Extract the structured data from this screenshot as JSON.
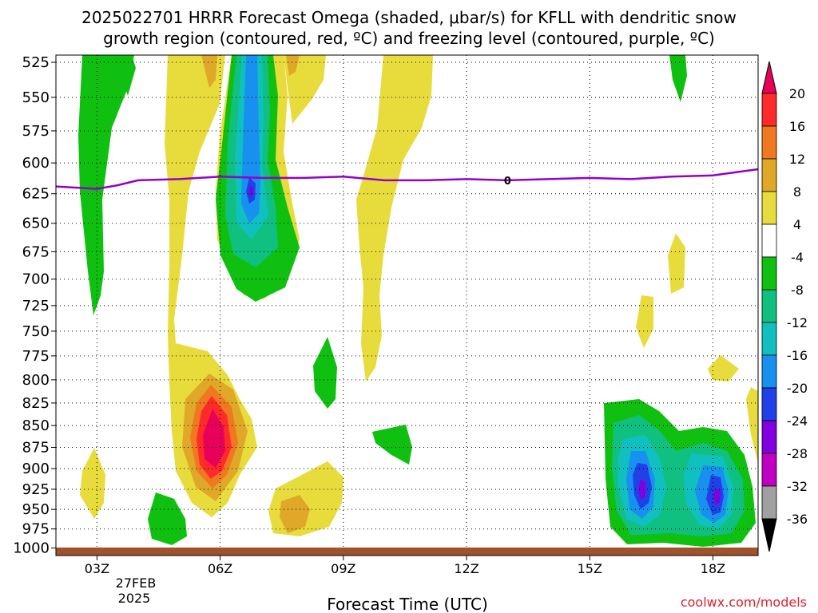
{
  "chart_data": {
    "type": "heatmap",
    "title_line1": "2025022701 HRRR Forecast Omega (shaded, μbar/s) for KFLL with dendritic snow",
    "title_line2": "growth region (contoured, red, ºC) and freezing level (contoured, purple, ºC)",
    "xlabel": "Forecast Time (UTC)",
    "credit": "coolwx.com/models",
    "date_line1": "27FEB",
    "date_line2": "2025",
    "x_ticks": [
      {
        "t": 3,
        "label": "03Z"
      },
      {
        "t": 6,
        "label": "06Z"
      },
      {
        "t": 9,
        "label": "09Z"
      },
      {
        "t": 12,
        "label": "12Z"
      },
      {
        "t": 15,
        "label": "15Z"
      },
      {
        "t": 18,
        "label": "18Z"
      }
    ],
    "xlim": [
      2,
      19.1
    ],
    "y_levels": [
      525,
      550,
      575,
      600,
      625,
      650,
      675,
      700,
      725,
      750,
      775,
      800,
      825,
      850,
      875,
      900,
      925,
      950,
      975,
      1000
    ],
    "ylim": [
      520,
      1010
    ],
    "y_scale": "log-pressure",
    "colorbar": {
      "labels": [
        "20",
        "16",
        "12",
        "8",
        "4",
        "-4",
        "-8",
        "-12",
        "-16",
        "-20",
        "-24",
        "-28",
        "-32",
        "-36"
      ],
      "colors": [
        "#e8005a",
        "#ff2a2a",
        "#f07820",
        "#e0a828",
        "#e8dc3c",
        "#ffffff",
        "#10c010",
        "#10c080",
        "#10c0c0",
        "#1890f0",
        "#2040e8",
        "#8000e0",
        "#c000c0",
        "#a0a0a0"
      ]
    },
    "freezing_level": {
      "label": "0",
      "color": "#9400c8",
      "points": [
        [
          2.0,
          619
        ],
        [
          3.0,
          621
        ],
        [
          3.5,
          618
        ],
        [
          4.0,
          614
        ],
        [
          5.0,
          613
        ],
        [
          6.0,
          611
        ],
        [
          7.0,
          612
        ],
        [
          8.0,
          612
        ],
        [
          9.0,
          611
        ],
        [
          10.0,
          614
        ],
        [
          11.0,
          614
        ],
        [
          12.0,
          613
        ],
        [
          13.0,
          614
        ],
        [
          14.0,
          613
        ],
        [
          15.0,
          612
        ],
        [
          16.0,
          613
        ],
        [
          17.0,
          611
        ],
        [
          18.0,
          610
        ],
        [
          19.1,
          605
        ]
      ]
    },
    "surface_color": "#a0522d"
  }
}
